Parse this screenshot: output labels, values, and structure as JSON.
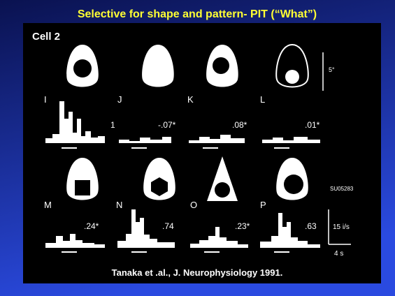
{
  "title": "Selective for shape and pattern- PIT (“What”)",
  "figure": {
    "heading": "Cell 2",
    "panels": [
      {
        "label": "I",
        "response": "1"
      },
      {
        "label": "J",
        "response": "-.07*"
      },
      {
        "label": "K",
        "response": ".08*"
      },
      {
        "label": "L",
        "response": ".01*"
      },
      {
        "label": "M",
        "response": ".24*"
      },
      {
        "label": "N",
        "response": ".74"
      },
      {
        "label": "O",
        "response": ".23*"
      },
      {
        "label": "P",
        "response": ".63"
      }
    ],
    "scale_labels": {
      "angle": "5°",
      "cell_id": "SU05283",
      "rate": "15 i/s",
      "time": "4 s"
    }
  },
  "citation": "Tanaka et .al., J. Neurophysiology 1991."
}
